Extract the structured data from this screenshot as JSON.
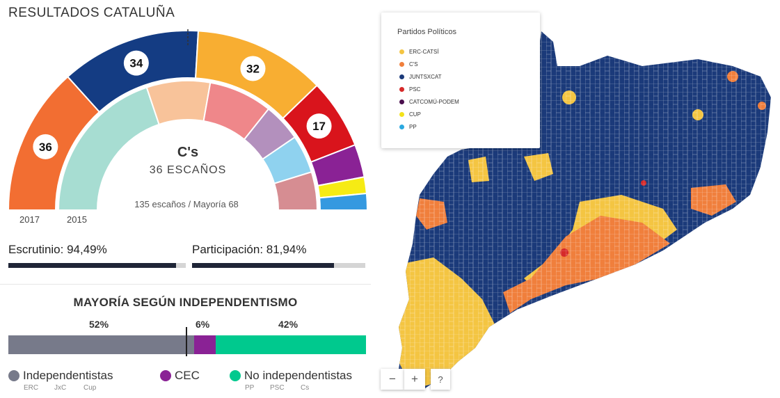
{
  "title": "RESULTADOS CATALUÑA",
  "hemicycle": {
    "leader_party": "C's",
    "leader_seats": "36 ESCAÑOS",
    "summary": "135 escaños / Mayoría 68",
    "year_2017": "2017",
    "year_2015": "2015",
    "outer_seats": [
      {
        "party": "C's",
        "seats": 36,
        "label": "36",
        "color": "#f26e32"
      },
      {
        "party": "JUNTSXCAT",
        "seats": 34,
        "label": "34",
        "color": "#143c83"
      },
      {
        "party": "ERC-CATSÍ",
        "seats": 32,
        "label": "32",
        "color": "#f8ae32"
      },
      {
        "party": "PSC",
        "seats": 17,
        "label": "17",
        "color": "#d9141c"
      },
      {
        "party": "CATCOMÚ-PODEM",
        "seats": 8,
        "color": "#8a2295"
      },
      {
        "party": "CUP",
        "seats": 4,
        "color": "#f6eb14"
      },
      {
        "party": "PP",
        "seats": 4,
        "color": "#3599e0"
      }
    ],
    "inner_seats": [
      {
        "seats": 25,
        "color": "#a7ddd2"
      },
      {
        "seats": 10,
        "color": "#f8c39a"
      },
      {
        "seats": 10,
        "color": "#ef878a"
      },
      {
        "seats": 6,
        "color": "#b390bd"
      },
      {
        "seats": 6,
        "color": "#8fd2ef"
      },
      {
        "seats": 6,
        "color": "#d68d92"
      }
    ]
  },
  "escrutinio": {
    "label": "Escrutinio: 94,49%",
    "value": 94.49
  },
  "participacion": {
    "label": "Participación: 81,94%",
    "value": 81.94
  },
  "mayoria": {
    "title": "MAYORÍA SEGÚN INDEPENDENTISMO",
    "segments": [
      {
        "name": "Independentistas",
        "pct_label": "52%",
        "value": 52,
        "color": "#777a8a",
        "parties": [
          "ERC",
          "JxC",
          "Cup"
        ]
      },
      {
        "name": "CEC",
        "pct_label": "6%",
        "value": 6,
        "color": "#8a2295",
        "parties": []
      },
      {
        "name": "No independentistas",
        "pct_label": "42%",
        "value": 42,
        "color": "#00c98e",
        "parties": [
          "PP",
          "PSC",
          "Cs"
        ]
      }
    ]
  },
  "map": {
    "legend_title": "Partidos Políticos",
    "legend": [
      {
        "label": "ERC-CATSÍ",
        "color": "#f4c542"
      },
      {
        "label": "C'S",
        "color": "#f07f3c"
      },
      {
        "label": "JUNTSXCAT",
        "color": "#1b3a7a"
      },
      {
        "label": "PSC",
        "color": "#d62a2a"
      },
      {
        "label": "CATCOMÚ-PODEM",
        "color": "#4a0f4d"
      },
      {
        "label": "CUP",
        "color": "#f3e21a"
      },
      {
        "label": "PP",
        "color": "#2aa9e0"
      }
    ],
    "zoom_out": "−",
    "zoom_in": "+",
    "help": "?"
  }
}
